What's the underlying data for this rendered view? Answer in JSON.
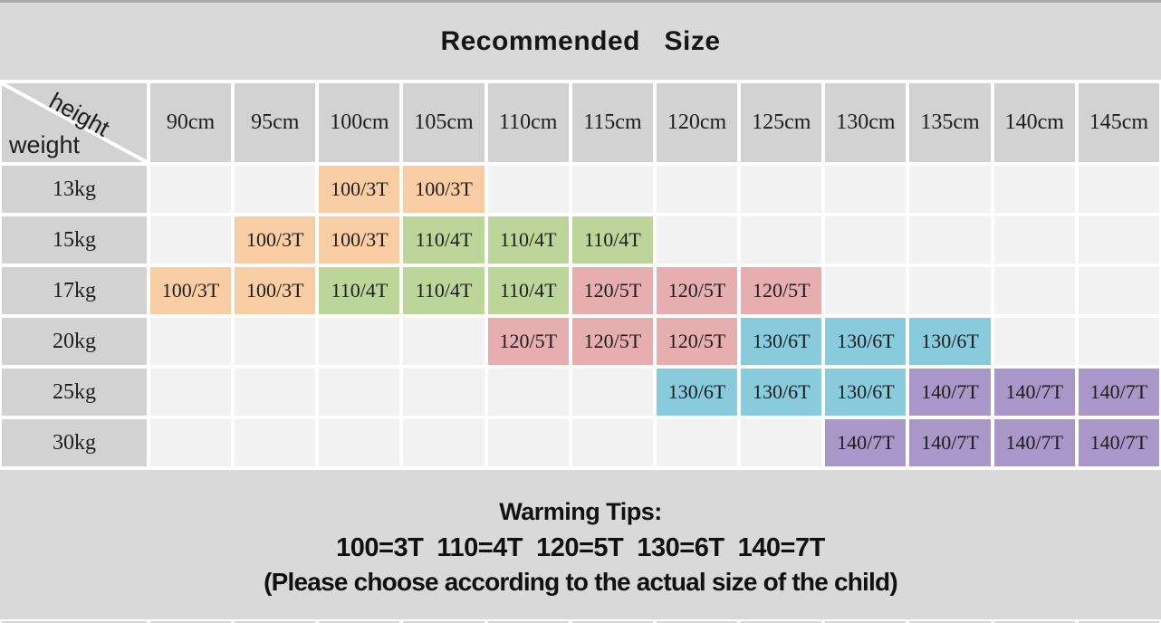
{
  "title": "Recommended   Size",
  "corner": {
    "height_label": "height",
    "weight_label": "weight"
  },
  "tips": {
    "title": "Warming Tips:",
    "mapping": "100=3T  110=4T  120=5T  130=6T  140=7T",
    "note": "(Please choose according to the actual size of the child)"
  },
  "colors": {
    "orange": "#f9cda3",
    "green": "#bcd69a",
    "pink": "#e6aeaf",
    "blue": "#88cbdc",
    "purple": "#a897c8",
    "header_gray": "#d2d2d2",
    "band_gray": "#d9d9d9",
    "empty_cell": "#f2f2f2"
  },
  "chart_data": {
    "type": "table",
    "title": "Recommended Size",
    "x_axis_label": "height",
    "y_axis_label": "weight",
    "columns": [
      "90cm",
      "95cm",
      "100cm",
      "105cm",
      "110cm",
      "115cm",
      "120cm",
      "125cm",
      "130cm",
      "135cm",
      "140cm",
      "145cm"
    ],
    "rows": [
      "13kg",
      "15kg",
      "17kg",
      "20kg",
      "25kg",
      "30kg"
    ],
    "cells": [
      [
        null,
        null,
        {
          "v": "100/3T",
          "c": "orange"
        },
        {
          "v": "100/3T",
          "c": "orange"
        },
        null,
        null,
        null,
        null,
        null,
        null,
        null,
        null
      ],
      [
        null,
        {
          "v": "100/3T",
          "c": "orange"
        },
        {
          "v": "100/3T",
          "c": "orange"
        },
        {
          "v": "110/4T",
          "c": "green"
        },
        {
          "v": "110/4T",
          "c": "green"
        },
        {
          "v": "110/4T",
          "c": "green"
        },
        null,
        null,
        null,
        null,
        null,
        null
      ],
      [
        {
          "v": "100/3T",
          "c": "orange"
        },
        {
          "v": "100/3T",
          "c": "orange"
        },
        {
          "v": "110/4T",
          "c": "green"
        },
        {
          "v": "110/4T",
          "c": "green"
        },
        {
          "v": "110/4T",
          "c": "green"
        },
        {
          "v": "120/5T",
          "c": "pink"
        },
        {
          "v": "120/5T",
          "c": "pink"
        },
        {
          "v": "120/5T",
          "c": "pink"
        },
        null,
        null,
        null,
        null
      ],
      [
        null,
        null,
        null,
        null,
        {
          "v": "120/5T",
          "c": "pink"
        },
        {
          "v": "120/5T",
          "c": "pink"
        },
        {
          "v": "120/5T",
          "c": "pink"
        },
        {
          "v": "130/6T",
          "c": "blue"
        },
        {
          "v": "130/6T",
          "c": "blue"
        },
        {
          "v": "130/6T",
          "c": "blue"
        },
        null,
        null
      ],
      [
        null,
        null,
        null,
        null,
        null,
        null,
        {
          "v": "130/6T",
          "c": "blue"
        },
        {
          "v": "130/6T",
          "c": "blue"
        },
        {
          "v": "130/6T",
          "c": "blue"
        },
        {
          "v": "140/7T",
          "c": "purple"
        },
        {
          "v": "140/7T",
          "c": "purple"
        },
        {
          "v": "140/7T",
          "c": "purple"
        }
      ],
      [
        null,
        null,
        null,
        null,
        null,
        null,
        null,
        null,
        {
          "v": "140/7T",
          "c": "purple"
        },
        {
          "v": "140/7T",
          "c": "purple"
        },
        {
          "v": "140/7T",
          "c": "purple"
        },
        {
          "v": "140/7T",
          "c": "purple"
        }
      ]
    ]
  }
}
